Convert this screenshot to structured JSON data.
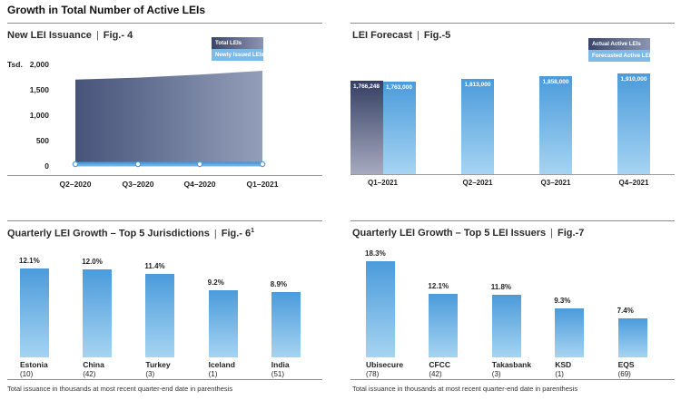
{
  "page": {
    "title": "Growth in Total Number of Active LEIs",
    "separator": "|"
  },
  "footnote": "Total issuance in thousands at most recent quarter-end date in parenthesis",
  "colors": {
    "light_bar_top": "#4B9BDB",
    "light_bar_bottom": "#A6D4F2",
    "dark_bar_top": "#353F64",
    "dark_bar_bottom": "#A7AABF",
    "legend_light_chip": "#7DBAE8",
    "line_blue": "#3E92D7",
    "divider_gray": "#8C8C8C"
  },
  "chart_data": [
    {
      "id": "fig4",
      "type": "area",
      "title": "New LEI Issuance",
      "fig_label": "Fig.- 4",
      "unit": "Tsd.",
      "x": [
        "Q2–2020",
        "Q3–2020",
        "Q4–2020",
        "Q1–2021"
      ],
      "series": [
        {
          "name": "Total LEIs",
          "values": [
            1700,
            1740,
            1800,
            1875
          ],
          "values_note": "approximate, read from chart (thousands)"
        },
        {
          "name": "Newly Issued LEIs",
          "values": [
            30,
            30,
            30,
            30
          ],
          "values_note": "approximate, read from chart (thousands)"
        }
      ],
      "ylim": [
        0,
        2000
      ],
      "yticks": [
        {
          "value": 2000,
          "label": "2,000"
        },
        {
          "value": 1500,
          "label": "1,500"
        },
        {
          "value": 1000,
          "label": "1,000"
        },
        {
          "value": 500,
          "label": "500"
        },
        {
          "value": 0,
          "label": "0"
        }
      ],
      "legend_position": "top-right",
      "grid": false
    },
    {
      "id": "fig5",
      "type": "bar",
      "title": "LEI Forecast",
      "fig_label": "Fig.-5",
      "legend": [
        "Actual Active LEIs",
        "Forecasted Active LEIs"
      ],
      "legend_position": "top-right",
      "grid": false,
      "groups": [
        {
          "label": "Q1–2021",
          "bars": [
            {
              "series": "Actual Active LEIs",
              "style": "dark",
              "value": 1766248,
              "display": "1,766,248"
            },
            {
              "series": "Forecasted Active LEIs",
              "style": "light",
              "value": 1763000,
              "display": "1,763,000"
            }
          ]
        },
        {
          "label": "Q2–2021",
          "bars": [
            {
              "series": "Forecasted Active LEIs",
              "style": "light",
              "value": 1813000,
              "display": "1,813,000"
            }
          ]
        },
        {
          "label": "Q3–2021",
          "bars": [
            {
              "series": "Forecasted Active LEIs",
              "style": "light",
              "value": 1858000,
              "display": "1,858,000"
            }
          ]
        },
        {
          "label": "Q4–2021",
          "bars": [
            {
              "series": "Forecasted Active LEIs",
              "style": "light",
              "value": 1910000,
              "display": "1,910,000"
            }
          ]
        }
      ]
    },
    {
      "id": "fig6",
      "type": "bar",
      "title": "Quarterly LEI Growth – Top 5 Jurisdictions",
      "fig_label": "Fig.- 6",
      "fig_sup": "1",
      "value_unit": "%",
      "grid": false,
      "bars": [
        {
          "name": "Estonia",
          "total": "(10)",
          "value": 12.1,
          "display": "12.1%"
        },
        {
          "name": "China",
          "total": "(42)",
          "value": 12.0,
          "display": "12.0%"
        },
        {
          "name": "Turkey",
          "total": "(3)",
          "value": 11.4,
          "display": "11.4%"
        },
        {
          "name": "Iceland",
          "total": "(1)",
          "value": 9.2,
          "display": "9.2%"
        },
        {
          "name": "India",
          "total": "(51)",
          "value": 8.9,
          "display": "8.9%"
        }
      ]
    },
    {
      "id": "fig7",
      "type": "bar",
      "title": "Quarterly LEI Growth – Top 5 LEI Issuers",
      "fig_label": "Fig.-7",
      "value_unit": "%",
      "grid": false,
      "bars": [
        {
          "name": "Ubisecure",
          "total": "(78)",
          "value": 18.3,
          "display": "18.3%"
        },
        {
          "name": "CFCC",
          "total": "(42)",
          "value": 12.1,
          "display": "12.1%"
        },
        {
          "name": "Takasbank",
          "total": "(3)",
          "value": 11.8,
          "display": "11.8%"
        },
        {
          "name": "KSD",
          "total": "(1)",
          "value": 9.3,
          "display": "9.3%"
        },
        {
          "name": "EQS",
          "total": "(69)",
          "value": 7.4,
          "display": "7.4%"
        }
      ]
    }
  ]
}
